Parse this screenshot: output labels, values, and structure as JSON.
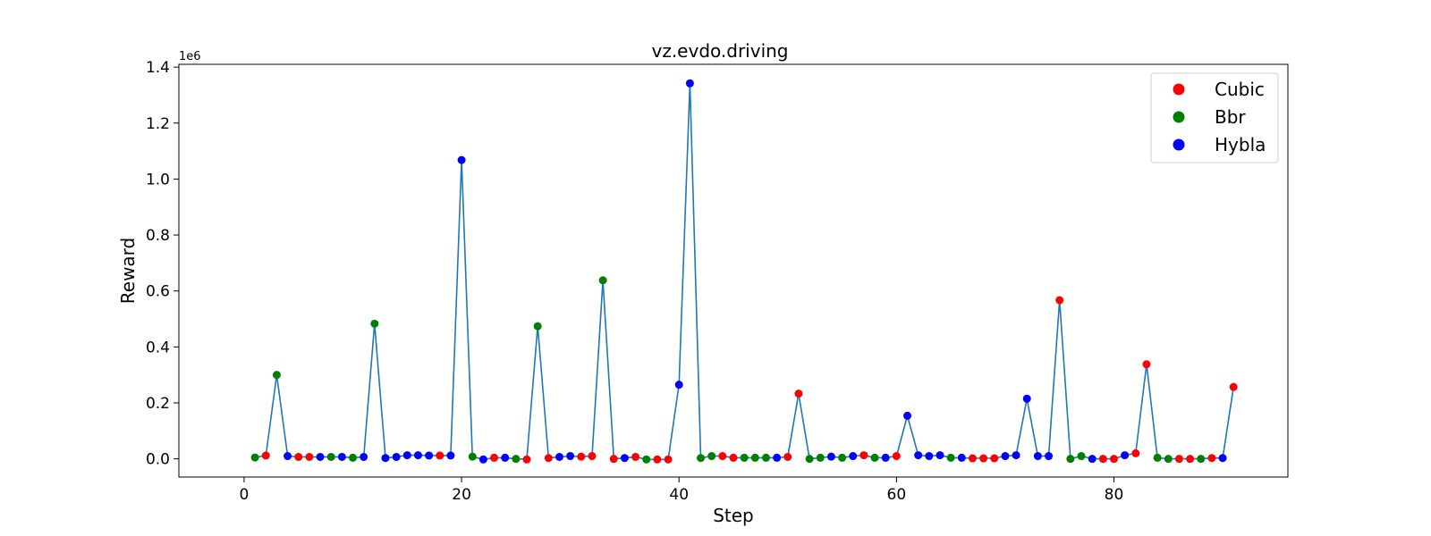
{
  "chart_data": {
    "type": "line",
    "title": "vz.evdo.driving",
    "xlabel": "Step",
    "ylabel": "Reward",
    "y_offset_label": "1e6",
    "xlim": [
      -6,
      96
    ],
    "ylim": [
      -0.065,
      1.41
    ],
    "x_ticks": [
      0,
      20,
      40,
      60,
      80
    ],
    "x_tick_labels": [
      "0",
      "20",
      "40",
      "60",
      "80"
    ],
    "y_ticks": [
      0.0,
      0.2,
      0.4,
      0.6,
      0.8,
      1.0,
      1.2,
      1.4
    ],
    "y_tick_labels": [
      "0.0",
      "0.2",
      "0.4",
      "0.6",
      "0.8",
      "1.0",
      "1.2",
      "1.4"
    ],
    "grid": false,
    "legend_position": "top-right",
    "line_color": "#1f77b4",
    "legend": [
      {
        "name": "Cubic",
        "color": "#ff0000"
      },
      {
        "name": "Bbr",
        "color": "#008000"
      },
      {
        "name": "Hybla",
        "color": "#0000ff"
      }
    ],
    "points": [
      {
        "x": 1,
        "y": 0.005,
        "algo": "Bbr"
      },
      {
        "x": 2,
        "y": 0.012,
        "algo": "Cubic"
      },
      {
        "x": 3,
        "y": 0.3,
        "algo": "Bbr"
      },
      {
        "x": 4,
        "y": 0.01,
        "algo": "Hybla"
      },
      {
        "x": 5,
        "y": 0.007,
        "algo": "Cubic"
      },
      {
        "x": 6,
        "y": 0.007,
        "algo": "Cubic"
      },
      {
        "x": 7,
        "y": 0.007,
        "algo": "Hybla"
      },
      {
        "x": 8,
        "y": 0.007,
        "algo": "Bbr"
      },
      {
        "x": 9,
        "y": 0.007,
        "algo": "Hybla"
      },
      {
        "x": 10,
        "y": 0.004,
        "algo": "Bbr"
      },
      {
        "x": 11,
        "y": 0.007,
        "algo": "Hybla"
      },
      {
        "x": 12,
        "y": 0.483,
        "algo": "Bbr"
      },
      {
        "x": 13,
        "y": 0.003,
        "algo": "Hybla"
      },
      {
        "x": 14,
        "y": 0.007,
        "algo": "Hybla"
      },
      {
        "x": 15,
        "y": 0.013,
        "algo": "Hybla"
      },
      {
        "x": 16,
        "y": 0.013,
        "algo": "Hybla"
      },
      {
        "x": 17,
        "y": 0.012,
        "algo": "Hybla"
      },
      {
        "x": 18,
        "y": 0.012,
        "algo": "Cubic"
      },
      {
        "x": 19,
        "y": 0.012,
        "algo": "Hybla"
      },
      {
        "x": 20,
        "y": 1.068,
        "algo": "Hybla"
      },
      {
        "x": 21,
        "y": 0.008,
        "algo": "Bbr"
      },
      {
        "x": 22,
        "y": -0.002,
        "algo": "Hybla"
      },
      {
        "x": 23,
        "y": 0.004,
        "algo": "Cubic"
      },
      {
        "x": 24,
        "y": 0.004,
        "algo": "Hybla"
      },
      {
        "x": 25,
        "y": 0.0,
        "algo": "Bbr"
      },
      {
        "x": 26,
        "y": -0.002,
        "algo": "Cubic"
      },
      {
        "x": 27,
        "y": 0.474,
        "algo": "Bbr"
      },
      {
        "x": 28,
        "y": 0.003,
        "algo": "Cubic"
      },
      {
        "x": 29,
        "y": 0.007,
        "algo": "Hybla"
      },
      {
        "x": 30,
        "y": 0.01,
        "algo": "Hybla"
      },
      {
        "x": 31,
        "y": 0.008,
        "algo": "Cubic"
      },
      {
        "x": 32,
        "y": 0.01,
        "algo": "Cubic"
      },
      {
        "x": 33,
        "y": 0.638,
        "algo": "Bbr"
      },
      {
        "x": 34,
        "y": 0.0,
        "algo": "Cubic"
      },
      {
        "x": 35,
        "y": 0.003,
        "algo": "Hybla"
      },
      {
        "x": 36,
        "y": 0.007,
        "algo": "Cubic"
      },
      {
        "x": 37,
        "y": -0.002,
        "algo": "Bbr"
      },
      {
        "x": 38,
        "y": -0.002,
        "algo": "Cubic"
      },
      {
        "x": 39,
        "y": -0.002,
        "algo": "Cubic"
      },
      {
        "x": 40,
        "y": 0.265,
        "algo": "Hybla"
      },
      {
        "x": 41,
        "y": 1.342,
        "algo": "Hybla"
      },
      {
        "x": 42,
        "y": 0.003,
        "algo": "Bbr"
      },
      {
        "x": 43,
        "y": 0.01,
        "algo": "Bbr"
      },
      {
        "x": 44,
        "y": 0.01,
        "algo": "Cubic"
      },
      {
        "x": 45,
        "y": 0.004,
        "algo": "Cubic"
      },
      {
        "x": 46,
        "y": 0.004,
        "algo": "Bbr"
      },
      {
        "x": 47,
        "y": 0.004,
        "algo": "Bbr"
      },
      {
        "x": 48,
        "y": 0.004,
        "algo": "Bbr"
      },
      {
        "x": 49,
        "y": 0.004,
        "algo": "Hybla"
      },
      {
        "x": 50,
        "y": 0.007,
        "algo": "Cubic"
      },
      {
        "x": 51,
        "y": 0.233,
        "algo": "Cubic"
      },
      {
        "x": 52,
        "y": 0.0,
        "algo": "Bbr"
      },
      {
        "x": 53,
        "y": 0.004,
        "algo": "Bbr"
      },
      {
        "x": 54,
        "y": 0.008,
        "algo": "Hybla"
      },
      {
        "x": 55,
        "y": 0.004,
        "algo": "Bbr"
      },
      {
        "x": 56,
        "y": 0.01,
        "algo": "Hybla"
      },
      {
        "x": 57,
        "y": 0.013,
        "algo": "Cubic"
      },
      {
        "x": 58,
        "y": 0.004,
        "algo": "Bbr"
      },
      {
        "x": 59,
        "y": 0.004,
        "algo": "Hybla"
      },
      {
        "x": 60,
        "y": 0.01,
        "algo": "Cubic"
      },
      {
        "x": 61,
        "y": 0.154,
        "algo": "Hybla"
      },
      {
        "x": 62,
        "y": 0.013,
        "algo": "Hybla"
      },
      {
        "x": 63,
        "y": 0.01,
        "algo": "Hybla"
      },
      {
        "x": 64,
        "y": 0.013,
        "algo": "Hybla"
      },
      {
        "x": 65,
        "y": 0.004,
        "algo": "Bbr"
      },
      {
        "x": 66,
        "y": 0.004,
        "algo": "Hybla"
      },
      {
        "x": 67,
        "y": 0.002,
        "algo": "Cubic"
      },
      {
        "x": 68,
        "y": 0.002,
        "algo": "Cubic"
      },
      {
        "x": 69,
        "y": 0.002,
        "algo": "Cubic"
      },
      {
        "x": 70,
        "y": 0.01,
        "algo": "Hybla"
      },
      {
        "x": 71,
        "y": 0.013,
        "algo": "Hybla"
      },
      {
        "x": 72,
        "y": 0.215,
        "algo": "Hybla"
      },
      {
        "x": 73,
        "y": 0.01,
        "algo": "Hybla"
      },
      {
        "x": 74,
        "y": 0.01,
        "algo": "Hybla"
      },
      {
        "x": 75,
        "y": 0.567,
        "algo": "Cubic"
      },
      {
        "x": 76,
        "y": 0.0,
        "algo": "Bbr"
      },
      {
        "x": 77,
        "y": 0.01,
        "algo": "Bbr"
      },
      {
        "x": 78,
        "y": 0.0,
        "algo": "Hybla"
      },
      {
        "x": 79,
        "y": 0.0,
        "algo": "Cubic"
      },
      {
        "x": 80,
        "y": 0.0,
        "algo": "Cubic"
      },
      {
        "x": 81,
        "y": 0.013,
        "algo": "Hybla"
      },
      {
        "x": 82,
        "y": 0.02,
        "algo": "Cubic"
      },
      {
        "x": 83,
        "y": 0.338,
        "algo": "Cubic"
      },
      {
        "x": 84,
        "y": 0.004,
        "algo": "Bbr"
      },
      {
        "x": 85,
        "y": 0.0,
        "algo": "Bbr"
      },
      {
        "x": 86,
        "y": 0.0,
        "algo": "Cubic"
      },
      {
        "x": 87,
        "y": 0.0,
        "algo": "Cubic"
      },
      {
        "x": 88,
        "y": 0.0,
        "algo": "Bbr"
      },
      {
        "x": 89,
        "y": 0.003,
        "algo": "Cubic"
      },
      {
        "x": 90,
        "y": 0.003,
        "algo": "Hybla"
      },
      {
        "x": 91,
        "y": 0.257,
        "algo": "Cubic"
      }
    ]
  }
}
